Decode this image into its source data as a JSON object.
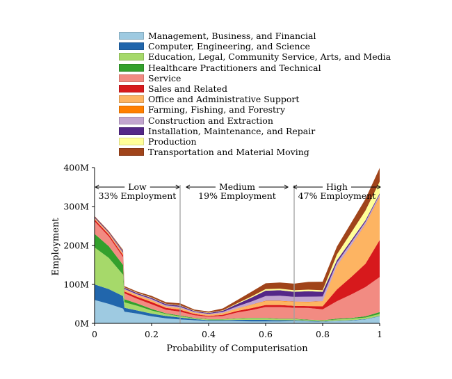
{
  "chart_data": {
    "type": "area",
    "title": "",
    "xlabel": "Probability of Computerisation",
    "ylabel": "Employment",
    "xlim": [
      0,
      1
    ],
    "ylim": [
      0,
      400
    ],
    "x_ticks": [
      "0",
      "0.2",
      "0.4",
      "0.6",
      "0.8",
      "1"
    ],
    "y_ticks": [
      "0M",
      "100M",
      "200M",
      "300M",
      "400M"
    ],
    "legend_placement": "top",
    "series": [
      {
        "name": "Management, Business, and Financial",
        "color": "#9ecae1",
        "points": [
          [
            0,
            60
          ],
          [
            0.05,
            50
          ],
          [
            0.1,
            38
          ],
          [
            0.105,
            30
          ],
          [
            0.15,
            25
          ],
          [
            0.2,
            18
          ],
          [
            0.25,
            13
          ],
          [
            0.3,
            10
          ],
          [
            0.35,
            8
          ],
          [
            0.4,
            6
          ],
          [
            0.45,
            6
          ],
          [
            0.5,
            6
          ],
          [
            0.55,
            5
          ],
          [
            0.6,
            5
          ],
          [
            0.65,
            5
          ],
          [
            0.7,
            6
          ],
          [
            0.75,
            5
          ],
          [
            0.8,
            4
          ],
          [
            0.85,
            6
          ],
          [
            0.9,
            7
          ],
          [
            0.95,
            10
          ],
          [
            1,
            18
          ]
        ]
      },
      {
        "name": "Computer, Engineering, and Science",
        "color": "#2166ac",
        "points": [
          [
            0,
            40
          ],
          [
            0.05,
            38
          ],
          [
            0.1,
            32
          ],
          [
            0.105,
            10
          ],
          [
            0.15,
            8
          ],
          [
            0.2,
            7
          ],
          [
            0.25,
            6
          ],
          [
            0.3,
            5
          ],
          [
            0.35,
            3
          ],
          [
            0.4,
            2
          ],
          [
            0.45,
            2
          ],
          [
            0.5,
            3
          ],
          [
            0.55,
            4
          ],
          [
            0.6,
            4
          ],
          [
            0.65,
            3
          ],
          [
            0.7,
            2
          ],
          [
            0.75,
            1.5
          ],
          [
            0.8,
            1
          ],
          [
            0.85,
            1
          ],
          [
            0.9,
            1
          ],
          [
            0.95,
            1
          ],
          [
            1,
            1
          ]
        ]
      },
      {
        "name": "Education, Legal, Community Service, Arts, and Media",
        "color": "#a6d96a",
        "points": [
          [
            0,
            95
          ],
          [
            0.05,
            80
          ],
          [
            0.1,
            55
          ],
          [
            0.105,
            14
          ],
          [
            0.15,
            12
          ],
          [
            0.2,
            8
          ],
          [
            0.25,
            5
          ],
          [
            0.3,
            3
          ],
          [
            0.35,
            2
          ],
          [
            0.4,
            2
          ],
          [
            0.45,
            2
          ],
          [
            0.5,
            3
          ],
          [
            0.55,
            4
          ],
          [
            0.6,
            4
          ],
          [
            0.65,
            3
          ],
          [
            0.7,
            3
          ],
          [
            0.75,
            2
          ],
          [
            0.8,
            2
          ],
          [
            0.85,
            3
          ],
          [
            0.9,
            4
          ],
          [
            0.95,
            4
          ],
          [
            1,
            5
          ]
        ]
      },
      {
        "name": "Healthcare Practitioners and Technical",
        "color": "#33a02c",
        "points": [
          [
            0,
            35
          ],
          [
            0.05,
            30
          ],
          [
            0.1,
            25
          ],
          [
            0.105,
            8
          ],
          [
            0.15,
            6
          ],
          [
            0.2,
            4
          ],
          [
            0.25,
            2
          ],
          [
            0.3,
            2
          ],
          [
            0.35,
            1
          ],
          [
            0.4,
            1
          ],
          [
            0.45,
            1
          ],
          [
            0.5,
            1
          ],
          [
            0.55,
            1
          ],
          [
            0.6,
            1
          ],
          [
            0.65,
            1
          ],
          [
            0.7,
            1
          ],
          [
            0.75,
            1
          ],
          [
            0.8,
            1
          ],
          [
            0.85,
            2
          ],
          [
            0.9,
            2
          ],
          [
            0.95,
            3
          ],
          [
            1,
            5
          ]
        ]
      },
      {
        "name": "Service",
        "color": "#f28b82",
        "points": [
          [
            0,
            32
          ],
          [
            0.05,
            25
          ],
          [
            0.1,
            20
          ],
          [
            0.105,
            15
          ],
          [
            0.15,
            12
          ],
          [
            0.2,
            12
          ],
          [
            0.25,
            9
          ],
          [
            0.3,
            10
          ],
          [
            0.35,
            7
          ],
          [
            0.4,
            6
          ],
          [
            0.45,
            8
          ],
          [
            0.5,
            15
          ],
          [
            0.55,
            20
          ],
          [
            0.6,
            28
          ],
          [
            0.65,
            30
          ],
          [
            0.7,
            28
          ],
          [
            0.75,
            30
          ],
          [
            0.8,
            28
          ],
          [
            0.85,
            45
          ],
          [
            0.9,
            60
          ],
          [
            0.95,
            75
          ],
          [
            1,
            90
          ]
        ]
      },
      {
        "name": "Sales and Related",
        "color": "#d7191c",
        "points": [
          [
            0,
            5
          ],
          [
            0.05,
            5
          ],
          [
            0.1,
            5
          ],
          [
            0.105,
            5
          ],
          [
            0.15,
            5
          ],
          [
            0.2,
            6
          ],
          [
            0.25,
            5
          ],
          [
            0.3,
            5
          ],
          [
            0.35,
            3
          ],
          [
            0.4,
            2
          ],
          [
            0.45,
            3
          ],
          [
            0.5,
            4
          ],
          [
            0.55,
            5
          ],
          [
            0.6,
            5
          ],
          [
            0.65,
            5
          ],
          [
            0.7,
            5
          ],
          [
            0.75,
            5
          ],
          [
            0.8,
            8
          ],
          [
            0.85,
            30
          ],
          [
            0.9,
            45
          ],
          [
            0.95,
            60
          ],
          [
            1,
            95
          ]
        ]
      },
      {
        "name": "Office and Administrative Support",
        "color": "#fdb462",
        "points": [
          [
            0,
            3
          ],
          [
            0.05,
            3
          ],
          [
            0.1,
            4
          ],
          [
            0.105,
            4
          ],
          [
            0.15,
            4
          ],
          [
            0.2,
            4
          ],
          [
            0.25,
            3
          ],
          [
            0.3,
            4
          ],
          [
            0.35,
            3
          ],
          [
            0.4,
            3
          ],
          [
            0.45,
            4
          ],
          [
            0.5,
            6
          ],
          [
            0.55,
            8
          ],
          [
            0.6,
            10
          ],
          [
            0.65,
            10
          ],
          [
            0.7,
            10
          ],
          [
            0.75,
            10
          ],
          [
            0.8,
            12
          ],
          [
            0.85,
            60
          ],
          [
            0.9,
            80
          ],
          [
            0.95,
            100
          ],
          [
            1,
            110
          ]
        ]
      },
      {
        "name": "Farming, Fishing, and Forestry",
        "color": "#ff7f00",
        "points": [
          [
            0,
            0.5
          ],
          [
            0.05,
            0.5
          ],
          [
            0.1,
            0.5
          ],
          [
            0.105,
            0.5
          ],
          [
            0.15,
            0.5
          ],
          [
            0.2,
            0.5
          ],
          [
            0.25,
            0.5
          ],
          [
            0.3,
            0.5
          ],
          [
            0.35,
            0.5
          ],
          [
            0.4,
            0.5
          ],
          [
            0.45,
            0.5
          ],
          [
            0.5,
            0.5
          ],
          [
            0.55,
            1
          ],
          [
            0.6,
            1
          ],
          [
            0.65,
            1
          ],
          [
            0.7,
            1
          ],
          [
            0.75,
            1
          ],
          [
            0.8,
            1
          ],
          [
            0.85,
            1
          ],
          [
            0.9,
            1
          ],
          [
            0.95,
            1.5
          ],
          [
            1,
            2
          ]
        ]
      },
      {
        "name": "Construction and Extraction",
        "color": "#c2a5cf",
        "points": [
          [
            0,
            1
          ],
          [
            0.05,
            1
          ],
          [
            0.1,
            2
          ],
          [
            0.105,
            2
          ],
          [
            0.15,
            2
          ],
          [
            0.2,
            3
          ],
          [
            0.25,
            3
          ],
          [
            0.3,
            3
          ],
          [
            0.35,
            2
          ],
          [
            0.4,
            2
          ],
          [
            0.45,
            3
          ],
          [
            0.5,
            5
          ],
          [
            0.55,
            8
          ],
          [
            0.6,
            12
          ],
          [
            0.65,
            13
          ],
          [
            0.7,
            12
          ],
          [
            0.75,
            13
          ],
          [
            0.8,
            12
          ],
          [
            0.85,
            8
          ],
          [
            0.9,
            8
          ],
          [
            0.95,
            6
          ],
          [
            1,
            5
          ]
        ]
      },
      {
        "name": "Installation, Maintenance, and Repair",
        "color": "#542788",
        "points": [
          [
            0,
            2
          ],
          [
            0.05,
            2
          ],
          [
            0.1,
            3
          ],
          [
            0.105,
            3
          ],
          [
            0.15,
            3
          ],
          [
            0.2,
            3
          ],
          [
            0.25,
            3
          ],
          [
            0.3,
            3
          ],
          [
            0.35,
            2
          ],
          [
            0.4,
            2
          ],
          [
            0.45,
            3
          ],
          [
            0.5,
            6
          ],
          [
            0.55,
            10
          ],
          [
            0.6,
            14
          ],
          [
            0.65,
            14
          ],
          [
            0.7,
            13
          ],
          [
            0.75,
            14
          ],
          [
            0.8,
            12
          ],
          [
            0.85,
            6
          ],
          [
            0.9,
            5
          ],
          [
            0.95,
            4
          ],
          [
            1,
            3
          ]
        ]
      },
      {
        "name": "Production",
        "color": "#ffff99",
        "points": [
          [
            0,
            0
          ],
          [
            0.05,
            0
          ],
          [
            0.1,
            1
          ],
          [
            0.105,
            1
          ],
          [
            0.15,
            1
          ],
          [
            0.2,
            1
          ],
          [
            0.25,
            1
          ],
          [
            0.3,
            1
          ],
          [
            0.35,
            1
          ],
          [
            0.4,
            1
          ],
          [
            0.45,
            1
          ],
          [
            0.5,
            2
          ],
          [
            0.55,
            3
          ],
          [
            0.6,
            4
          ],
          [
            0.65,
            4
          ],
          [
            0.7,
            4
          ],
          [
            0.75,
            4
          ],
          [
            0.8,
            4
          ],
          [
            0.85,
            15
          ],
          [
            0.9,
            20
          ],
          [
            0.95,
            25
          ],
          [
            1,
            30
          ]
        ]
      },
      {
        "name": "Transportation and Material Moving",
        "color": "#a0441a",
        "points": [
          [
            0,
            2
          ],
          [
            0.05,
            2
          ],
          [
            0.1,
            3
          ],
          [
            0.105,
            3
          ],
          [
            0.15,
            3
          ],
          [
            0.2,
            4
          ],
          [
            0.25,
            4
          ],
          [
            0.3,
            5
          ],
          [
            0.35,
            3
          ],
          [
            0.4,
            3
          ],
          [
            0.45,
            5
          ],
          [
            0.5,
            8
          ],
          [
            0.55,
            12
          ],
          [
            0.6,
            15
          ],
          [
            0.65,
            16
          ],
          [
            0.7,
            17
          ],
          [
            0.75,
            20
          ],
          [
            0.8,
            22
          ],
          [
            0.85,
            20
          ],
          [
            0.9,
            25
          ],
          [
            0.95,
            30
          ],
          [
            1,
            35
          ]
        ]
      }
    ],
    "annotations": [
      {
        "label": "Low",
        "text": "33% Employment",
        "x_center": 0.15
      },
      {
        "label": "Medium",
        "text": "19% Employment",
        "x_center": 0.5
      },
      {
        "label": "High",
        "text": "47% Employment",
        "x_center": 0.85
      }
    ],
    "vlines": [
      0.3,
      0.7
    ]
  }
}
